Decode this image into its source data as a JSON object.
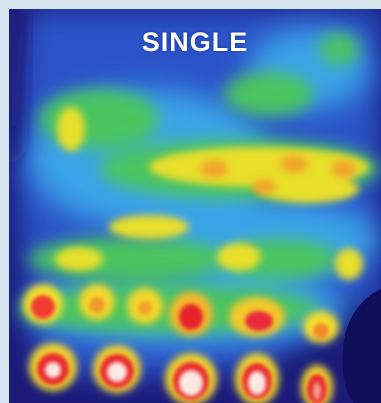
{
  "image": {
    "label": "SINGLE",
    "colormap": "jet",
    "border_color": "#d6e4ee"
  }
}
